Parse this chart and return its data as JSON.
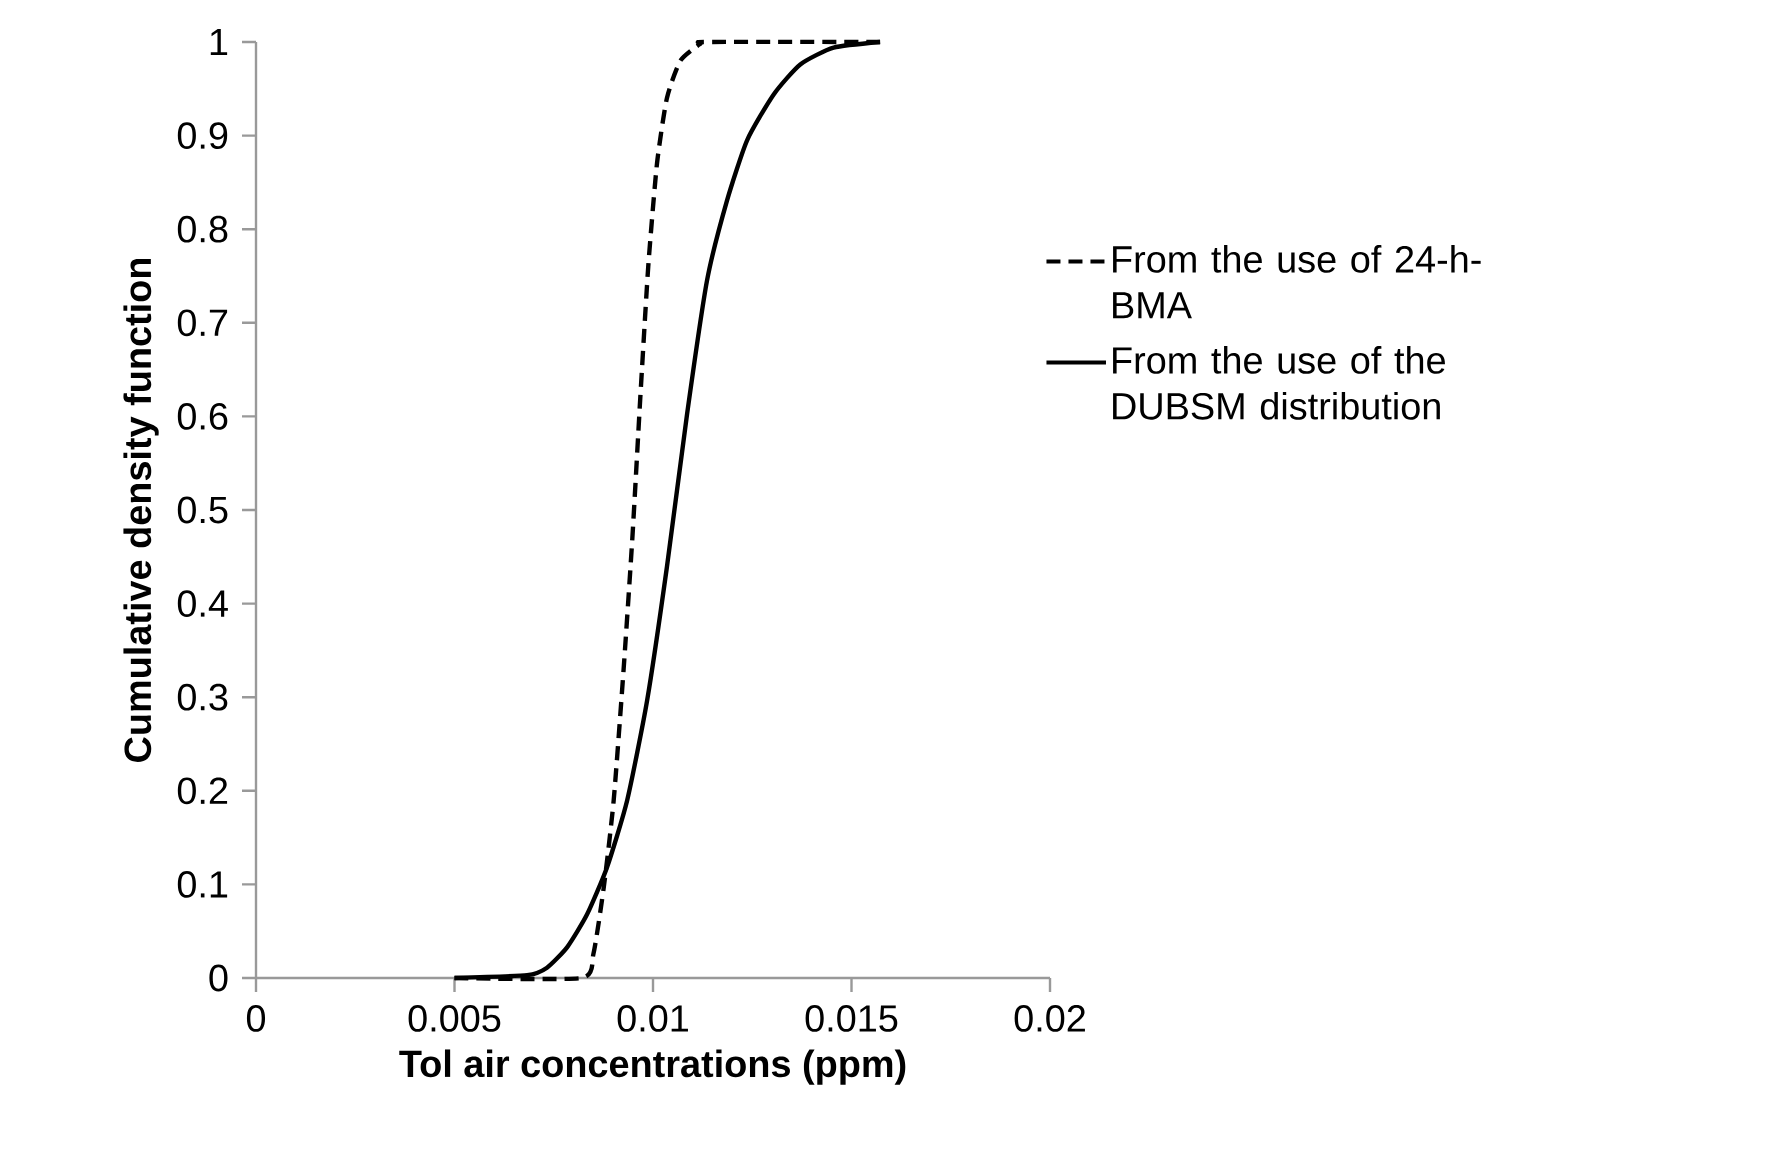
{
  "chart_data": {
    "type": "line",
    "xlabel": "Tol air concentrations (ppm)",
    "ylabel": "Cumulative density function",
    "xlim": [
      0,
      0.02
    ],
    "xticks": [
      0,
      0.005,
      0.01,
      0.015,
      0.02
    ],
    "ylim": [
      0,
      1
    ],
    "yticks": [
      0,
      0.1,
      0.2,
      0.3,
      0.4,
      0.5,
      0.6,
      0.7,
      0.8,
      0.9,
      1
    ],
    "grid": false,
    "legend": "right",
    "marker": "none",
    "series": [
      {
        "name": "From the use of 24-h-BMA",
        "color": "#000000",
        "line_style": "dashed",
        "x": [
          0.005,
          0.0082,
          0.0085,
          0.00876,
          0.00901,
          0.00926,
          0.00948,
          0.00968,
          0.00988,
          0.0101,
          0.01035,
          0.01069,
          0.01119,
          0.01136,
          0.01572
        ],
        "values": [
          0,
          0,
          0.026,
          0.097,
          0.19,
          0.33,
          0.47,
          0.62,
          0.76,
          0.87,
          0.94,
          0.98,
          0.998,
          1,
          1
        ]
      },
      {
        "name": "From the use of the DUBSM distribution",
        "color": "#000000",
        "line_style": "solid",
        "x": [
          0.005,
          0.00683,
          0.00733,
          0.00784,
          0.00834,
          0.00884,
          0.00935,
          0.00985,
          0.01035,
          0.01086,
          0.01136,
          0.01186,
          0.01237,
          0.01304,
          0.01371,
          0.01455,
          0.01572
        ],
        "values": [
          0,
          0.003,
          0.011,
          0.033,
          0.068,
          0.118,
          0.19,
          0.296,
          0.439,
          0.603,
          0.745,
          0.83,
          0.895,
          0.944,
          0.976,
          0.994,
          1
        ]
      }
    ]
  }
}
